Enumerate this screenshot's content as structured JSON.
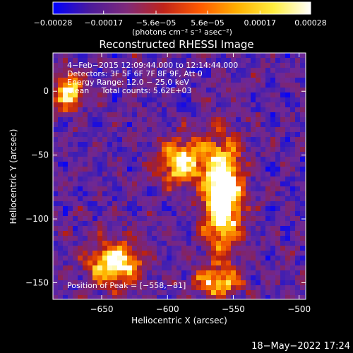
{
  "chart_data": {
    "type": "heatmap",
    "title": "Reconstructed RHESSI Image",
    "xlabel": "Heliocentric X (arcsec)",
    "ylabel": "Heliocentric Y (arcsec)",
    "xlim": [
      -687,
      -495
    ],
    "ylim": [
      -163,
      30
    ],
    "x_ticks": [
      -650,
      -600,
      -550,
      -500
    ],
    "x_tick_labels": [
      "−650",
      "−600",
      "−550",
      "−500"
    ],
    "y_ticks": [
      -150,
      -100,
      -50,
      0
    ],
    "y_tick_labels": [
      "−150",
      "−100",
      "−50",
      "0"
    ],
    "colorbar": {
      "min": -0.00028,
      "max": 0.00028,
      "ticks": [
        -0.00028,
        -0.00017,
        -5.6e-05,
        5.6e-05,
        0.00017,
        0.00028
      ],
      "tick_labels": [
        "−0.00028",
        "−0.00017",
        "−5.6e−05",
        "5.6e−05",
        "0.00017",
        "0.00028"
      ],
      "units_label": "(photons cm⁻² s⁻¹ asec⁻²)",
      "colormap": [
        "#0000ff",
        "#4b1a9c",
        "#7f2a7a",
        "#c0241a",
        "#ff5a00",
        "#ffb000",
        "#ffee40",
        "#ffffff"
      ]
    },
    "annotations": {
      "time_range": "4−Feb−2015 12:09:44.000 to 12:14:44.000",
      "detectors": "Detectors: 3F 5F 6F 7F 8F 9F, Att 0",
      "energy_range": "Energy Range: 12.0 − 25.0 keV",
      "clean_counts": "Clean     Total counts: 5.62E+03",
      "peak": "Position of Peak = [−558,−81]"
    },
    "peak_position": [
      -558,
      -81
    ],
    "emission_sources": [
      {
        "x": -558,
        "y": -81,
        "amplitude": 1.0,
        "sx": 10,
        "sy": 30
      },
      {
        "x": -590,
        "y": -55,
        "amplitude": 0.75,
        "sx": 12,
        "sy": 12
      },
      {
        "x": -640,
        "y": -135,
        "amplitude": 0.8,
        "sx": 14,
        "sy": 12
      },
      {
        "x": -675,
        "y": -1,
        "amplitude": 0.7,
        "sx": 8,
        "sy": 10
      },
      {
        "x": -563,
        "y": -150,
        "amplitude": 0.6,
        "sx": 12,
        "sy": 8
      }
    ]
  },
  "footer": {
    "date_stamp": "18−May−2022 17:24"
  }
}
